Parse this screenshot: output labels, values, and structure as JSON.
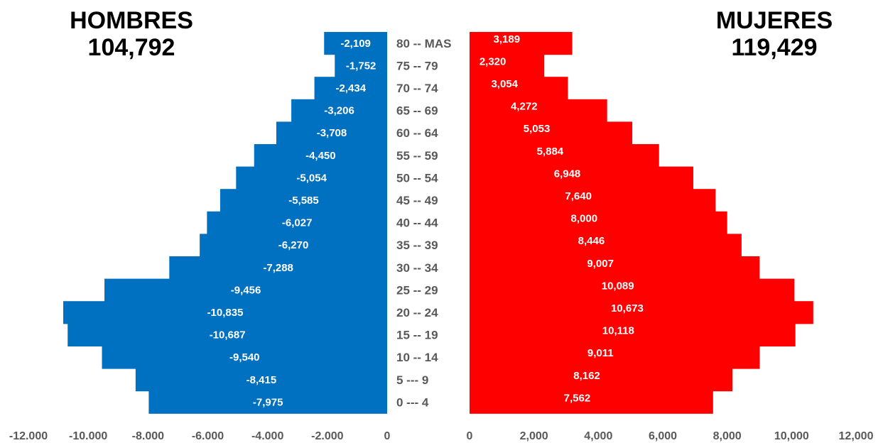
{
  "header": {
    "men_title": "HOMBRES",
    "men_total": "104,792",
    "women_title": "MUJERES",
    "women_total": "119,429"
  },
  "colors": {
    "men": "#0070C0",
    "women": "#FF0000",
    "labels": "#595959"
  },
  "chart_data": {
    "type": "bar",
    "categories": [
      "80 -- MAS",
      "75 -- 79",
      "70 -- 74",
      "65 -- 69",
      "60 -- 64",
      "55 -- 59",
      "50 -- 54",
      "45 -- 49",
      "40 -- 44",
      "35 -- 39",
      "30 -- 34",
      "25 -- 29",
      "20 -- 24",
      "15 -- 19",
      "10 -- 14",
      "5 --- 9",
      "0 --- 4"
    ],
    "series": [
      {
        "name": "HOMBRES",
        "values": [
          -2109,
          -1752,
          -2434,
          -3206,
          -3708,
          -4450,
          -5054,
          -5585,
          -6027,
          -6270,
          -7288,
          -9456,
          -10835,
          -10687,
          -9540,
          -8415,
          -7975
        ],
        "labels": [
          "-2,109",
          "-1,752",
          "-2,434",
          "-3,206",
          "-3,708",
          "-4,450",
          "-5,054",
          "-5,585",
          "-6,027",
          "-6,270",
          "-7,288",
          "-9,456",
          "-10,835",
          "-10,687",
          "-9,540",
          "-8,415",
          "-7,975"
        ]
      },
      {
        "name": "MUJERES",
        "values": [
          3189,
          2320,
          3054,
          4272,
          5053,
          5884,
          6948,
          7640,
          8000,
          8446,
          9007,
          10089,
          10673,
          10118,
          9011,
          8162,
          7562
        ],
        "labels": [
          "3,189",
          "2,320",
          "3,054",
          "4,272",
          "5,053",
          "5,884",
          "6,948",
          "7,640",
          "8,000",
          "8,446",
          "9,007",
          "10,089",
          "10,673",
          "10,118",
          "9,011",
          "8,162",
          "7,562"
        ]
      }
    ],
    "left_axis": {
      "range": [
        -12000,
        0
      ],
      "ticks": [
        -12000,
        -10000,
        -8000,
        -6000,
        -4000,
        -2000,
        0
      ],
      "tick_labels": [
        "-12.000",
        "-10.000",
        "-8.000",
        "-6.000",
        "-4.000",
        "-2.000",
        "0"
      ]
    },
    "right_axis": {
      "range": [
        0,
        12000
      ],
      "ticks": [
        0,
        2000,
        4000,
        6000,
        8000,
        10000,
        12000
      ],
      "tick_labels": [
        "0",
        "2,000",
        "4,000",
        "6,000",
        "8,000",
        "10,000",
        "12,000"
      ]
    },
    "grid": false,
    "legend": "none"
  }
}
